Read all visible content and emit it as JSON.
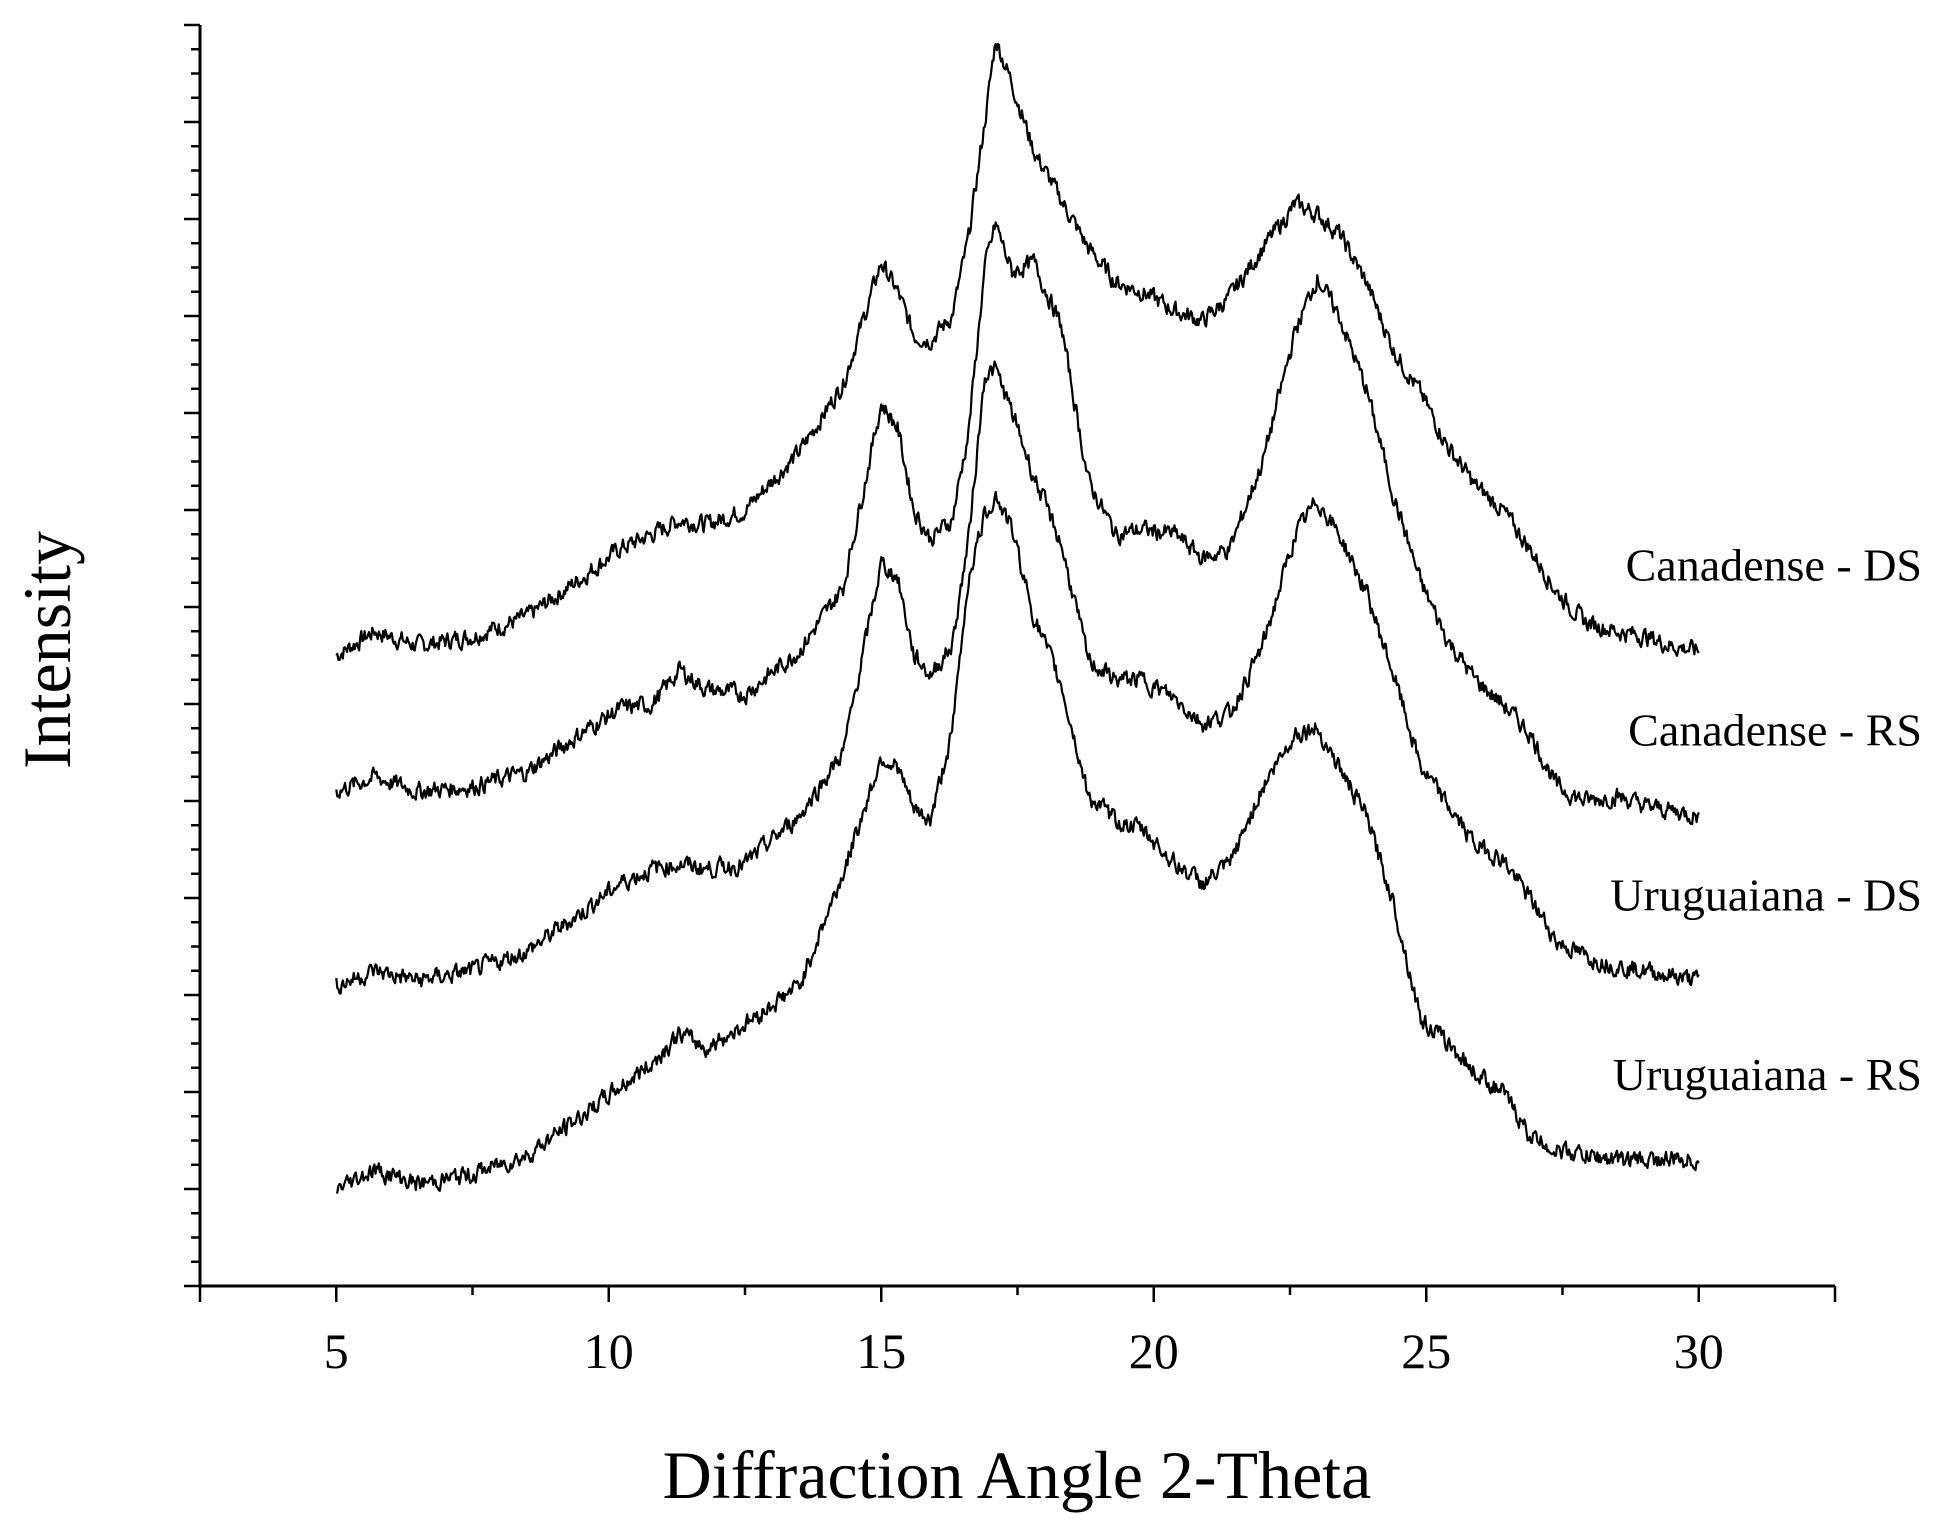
{
  "chart_data": {
    "type": "line",
    "title": "",
    "xlabel": "Diffraction Angle 2-Theta",
    "ylabel": "Intensity",
    "xlim": [
      2.5,
      32.5
    ],
    "ylim": [
      0,
      13
    ],
    "xticks": [
      5,
      10,
      15,
      20,
      25,
      30
    ],
    "xtick_labels": [
      "5",
      "10",
      "15",
      "20",
      "25",
      "30"
    ],
    "y_tick_labels_shown": false,
    "legend_placement": "right, labels beside curve ends",
    "series": [
      {
        "name": "Canadense - DS",
        "x": [
          5,
          5.7,
          6.5,
          7.5,
          8.5,
          9.5,
          10.2,
          10.8,
          11.3,
          11.8,
          12.5,
          13.5,
          14.3,
          15.0,
          15.3,
          15.6,
          15.9,
          16.3,
          16.6,
          16.9,
          17.1,
          17.4,
          17.8,
          18.3,
          18.8,
          19.3,
          19.8,
          20.4,
          20.9,
          21.4,
          22.0,
          22.6,
          23.0,
          23.4,
          23.9,
          24.4,
          24.9,
          25.4,
          25.9,
          26.4,
          26.9,
          27.4,
          27.9,
          28.5,
          29.0,
          29.5,
          30.0
        ],
        "values": [
          6.5,
          6.75,
          6.6,
          6.7,
          6.9,
          7.3,
          7.6,
          7.75,
          7.9,
          7.85,
          8.0,
          8.6,
          9.3,
          10.55,
          10.25,
          9.8,
          9.75,
          10.0,
          10.8,
          12.0,
          12.85,
          12.4,
          11.7,
          11.2,
          10.7,
          10.35,
          10.25,
          10.05,
          9.95,
          10.2,
          10.7,
          11.15,
          11.05,
          10.85,
          10.35,
          9.65,
          9.2,
          8.65,
          8.25,
          8.0,
          7.6,
          7.15,
          6.85,
          6.75,
          6.7,
          6.6,
          6.55
        ]
      },
      {
        "name": "Canadense - RS",
        "x": [
          5,
          5.7,
          6.5,
          7.5,
          8.5,
          9.5,
          10.2,
          10.8,
          11.3,
          11.8,
          12.5,
          13.5,
          14.3,
          15.0,
          15.3,
          15.6,
          15.9,
          16.3,
          16.6,
          16.9,
          17.1,
          17.4,
          17.8,
          18.3,
          18.8,
          19.3,
          19.8,
          20.4,
          20.9,
          21.4,
          22.0,
          22.6,
          23.0,
          23.4,
          23.9,
          24.4,
          24.9,
          25.4,
          25.9,
          26.4,
          26.9,
          27.4,
          27.9,
          28.5,
          29.0,
          29.5,
          30.0
        ],
        "values": [
          5.1,
          5.25,
          5.1,
          5.15,
          5.3,
          5.7,
          5.95,
          6.0,
          6.35,
          6.15,
          6.1,
          6.55,
          7.2,
          9.1,
          8.85,
          8.0,
          7.7,
          7.9,
          8.8,
          10.5,
          10.95,
          10.45,
          10.55,
          9.9,
          8.3,
          7.75,
          7.8,
          7.75,
          7.5,
          7.6,
          8.5,
          9.85,
          10.4,
          10.0,
          9.25,
          8.15,
          7.25,
          6.65,
          6.25,
          6.0,
          5.7,
          5.15,
          5.0,
          5.05,
          4.95,
          4.9,
          4.85
        ]
      },
      {
        "name": "Uruguaiana - DS",
        "x": [
          5,
          5.7,
          6.5,
          7.5,
          8.5,
          9.5,
          10.2,
          10.8,
          11.3,
          11.8,
          12.5,
          13.5,
          14.3,
          15.0,
          15.3,
          15.6,
          15.9,
          16.3,
          16.6,
          16.9,
          17.1,
          17.4,
          17.8,
          18.3,
          18.8,
          19.3,
          19.8,
          20.4,
          20.9,
          21.4,
          22.0,
          22.6,
          23.0,
          23.4,
          23.9,
          24.4,
          24.9,
          25.4,
          25.9,
          26.4,
          26.9,
          27.4,
          27.9,
          28.5,
          29.0,
          29.5,
          30.0
        ],
        "values": [
          3.1,
          3.25,
          3.15,
          3.25,
          3.45,
          3.85,
          4.15,
          4.3,
          4.35,
          4.3,
          4.35,
          4.85,
          5.5,
          7.45,
          7.3,
          6.5,
          6.3,
          6.6,
          7.7,
          9.4,
          9.45,
          9.0,
          8.35,
          7.65,
          6.45,
          6.25,
          6.25,
          6.05,
          5.8,
          5.9,
          6.6,
          7.75,
          8.1,
          7.75,
          7.15,
          6.3,
          5.35,
          4.95,
          4.55,
          4.4,
          4.0,
          3.55,
          3.4,
          3.3,
          3.25,
          3.2,
          3.15
        ]
      },
      {
        "name": "Uruguaiana - RS",
        "x": [
          5,
          5.7,
          6.5,
          7.5,
          8.5,
          9.5,
          10.2,
          10.8,
          11.3,
          11.8,
          12.5,
          13.5,
          14.3,
          15.0,
          15.3,
          15.6,
          15.9,
          16.3,
          16.6,
          16.9,
          17.1,
          17.4,
          17.8,
          18.3,
          18.8,
          19.3,
          19.8,
          20.4,
          20.9,
          21.4,
          22.0,
          22.6,
          23.0,
          23.4,
          23.9,
          24.4,
          24.9,
          25.4,
          25.9,
          26.4,
          26.9,
          27.4,
          27.9,
          28.5,
          29.0,
          29.5,
          30.0
        ],
        "values": [
          1.0,
          1.2,
          1.05,
          1.15,
          1.35,
          1.75,
          2.05,
          2.3,
          2.6,
          2.45,
          2.7,
          3.1,
          4.25,
          5.45,
          5.35,
          4.9,
          4.8,
          5.7,
          7.3,
          7.95,
          8.15,
          7.8,
          6.9,
          6.2,
          5.05,
          4.8,
          4.7,
          4.35,
          4.15,
          4.35,
          5.15,
          5.7,
          5.75,
          5.35,
          4.85,
          3.95,
          2.75,
          2.5,
          2.2,
          2.0,
          1.55,
          1.4,
          1.35,
          1.3,
          1.3,
          1.3,
          1.3
        ]
      }
    ]
  }
}
